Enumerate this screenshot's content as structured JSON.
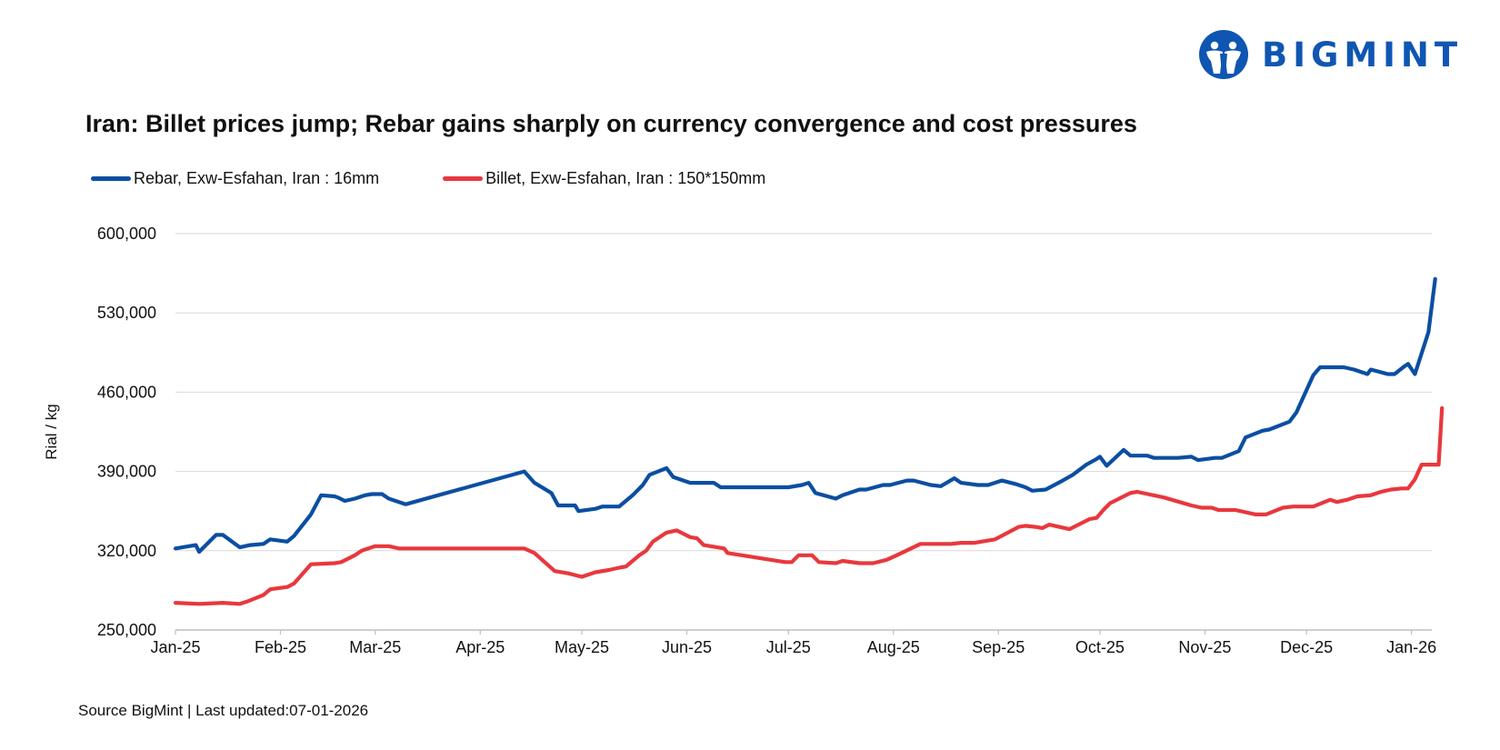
{
  "logo": {
    "name": "BIGMINT",
    "icon": "bigmint-logo-icon",
    "brand_color": "#0F56B3"
  },
  "chart_data": {
    "type": "line",
    "title": "Iran: Billet prices jump; Rebar gains sharply on currency convergence and cost pressures",
    "xlabel": "",
    "ylabel": "Rial / kg",
    "ylim": [
      250000,
      600000
    ],
    "yticks": [
      "600,000",
      "530,000",
      "460,000",
      "390,000",
      "320,000",
      "250,000"
    ],
    "ytick_values": [
      600000,
      530000,
      460000,
      390000,
      320000,
      250000
    ],
    "x_tick_labels": [
      "Jan-25",
      "Feb-25",
      "Mar-25",
      "Apr-25",
      "May-25",
      "Jun-25",
      "Jul-25",
      "Aug-25",
      "Sep-25",
      "Oct-25",
      "Nov-25",
      "Dec-25",
      "Jan-26"
    ],
    "x_tick_days": [
      0,
      31,
      59,
      90,
      120,
      151,
      181,
      212,
      243,
      273,
      304,
      334,
      365
    ],
    "x_range_days": [
      0,
      371
    ],
    "grid": true,
    "legend_position": "top-left",
    "series": [
      {
        "name": "Rebar, Exw-Esfahan, Iran : 16mm",
        "color": "#0B4EA2",
        "points": [
          [
            0,
            322000
          ],
          [
            6,
            325000
          ],
          [
            7,
            319000
          ],
          [
            12,
            334000
          ],
          [
            14,
            334000
          ],
          [
            19,
            323000
          ],
          [
            22,
            325000
          ],
          [
            26,
            326000
          ],
          [
            28,
            330000
          ],
          [
            33,
            328000
          ],
          [
            35,
            333000
          ],
          [
            40,
            352000
          ],
          [
            43,
            369000
          ],
          [
            47,
            368000
          ],
          [
            48,
            367000
          ],
          [
            50,
            364000
          ],
          [
            53,
            366000
          ],
          [
            56,
            369000
          ],
          [
            58,
            370000
          ],
          [
            61,
            370000
          ],
          [
            63,
            366000
          ],
          [
            68,
            361000
          ],
          [
            103,
            390000
          ],
          [
            106,
            380000
          ],
          [
            111,
            371000
          ],
          [
            113,
            360000
          ],
          [
            118,
            360000
          ],
          [
            119,
            355000
          ],
          [
            124,
            357000
          ],
          [
            126,
            359000
          ],
          [
            131,
            359000
          ],
          [
            135,
            369000
          ],
          [
            138,
            378000
          ],
          [
            140,
            387000
          ],
          [
            145,
            393000
          ],
          [
            147,
            385000
          ],
          [
            152,
            380000
          ],
          [
            159,
            380000
          ],
          [
            161,
            376000
          ],
          [
            181,
            376000
          ],
          [
            185,
            378000
          ],
          [
            187,
            380000
          ],
          [
            189,
            371000
          ],
          [
            195,
            366000
          ],
          [
            197,
            369000
          ],
          [
            202,
            374000
          ],
          [
            204,
            374000
          ],
          [
            209,
            378000
          ],
          [
            211,
            378000
          ],
          [
            216,
            382000
          ],
          [
            218,
            382000
          ],
          [
            223,
            378000
          ],
          [
            226,
            377000
          ],
          [
            230,
            384000
          ],
          [
            232,
            380000
          ],
          [
            237,
            378000
          ],
          [
            240,
            378000
          ],
          [
            244,
            382000
          ],
          [
            248,
            379000
          ],
          [
            251,
            376000
          ],
          [
            253,
            373000
          ],
          [
            257,
            374000
          ],
          [
            262,
            382000
          ],
          [
            265,
            387000
          ],
          [
            269,
            396000
          ],
          [
            272,
            401000
          ],
          [
            273,
            403000
          ],
          [
            275,
            395000
          ],
          [
            280,
            409000
          ],
          [
            282,
            404000
          ],
          [
            287,
            404000
          ],
          [
            289,
            402000
          ],
          [
            296,
            402000
          ],
          [
            300,
            403000
          ],
          [
            302,
            400000
          ],
          [
            307,
            402000
          ],
          [
            309,
            402000
          ],
          [
            314,
            408000
          ],
          [
            316,
            420000
          ],
          [
            321,
            426000
          ],
          [
            323,
            427000
          ],
          [
            329,
            434000
          ],
          [
            331,
            442000
          ],
          [
            336,
            475000
          ],
          [
            338,
            482000
          ],
          [
            343,
            482000
          ],
          [
            345,
            482000
          ],
          [
            348,
            480000
          ],
          [
            352,
            476000
          ],
          [
            353,
            480000
          ],
          [
            358,
            476000
          ],
          [
            360,
            476000
          ],
          [
            363,
            483000
          ],
          [
            364,
            485000
          ],
          [
            366,
            476000
          ],
          [
            370,
            513000
          ],
          [
            372,
            560000
          ]
        ]
      },
      {
        "name": "Billet, Exw-Esfahan, Iran : 150*150mm",
        "color": "#E8383D",
        "points": [
          [
            0,
            274000
          ],
          [
            7,
            273000
          ],
          [
            14,
            274000
          ],
          [
            19,
            273000
          ],
          [
            21,
            275000
          ],
          [
            26,
            281000
          ],
          [
            28,
            286000
          ],
          [
            33,
            288000
          ],
          [
            35,
            291000
          ],
          [
            40,
            308000
          ],
          [
            47,
            309000
          ],
          [
            49,
            310000
          ],
          [
            53,
            316000
          ],
          [
            55,
            320000
          ],
          [
            59,
            324000
          ],
          [
            63,
            324000
          ],
          [
            66,
            322000
          ],
          [
            103,
            322000
          ],
          [
            106,
            318000
          ],
          [
            112,
            302000
          ],
          [
            116,
            300000
          ],
          [
            120,
            297000
          ],
          [
            124,
            301000
          ],
          [
            128,
            303000
          ],
          [
            131,
            305000
          ],
          [
            133,
            306000
          ],
          [
            137,
            316000
          ],
          [
            139,
            320000
          ],
          [
            141,
            328000
          ],
          [
            145,
            336000
          ],
          [
            148,
            338000
          ],
          [
            152,
            332000
          ],
          [
            154,
            331000
          ],
          [
            156,
            325000
          ],
          [
            162,
            322000
          ],
          [
            163,
            318000
          ],
          [
            180,
            310000
          ],
          [
            182,
            310000
          ],
          [
            184,
            316000
          ],
          [
            188,
            316000
          ],
          [
            190,
            310000
          ],
          [
            195,
            309000
          ],
          [
            197,
            311000
          ],
          [
            202,
            309000
          ],
          [
            206,
            309000
          ],
          [
            210,
            312000
          ],
          [
            213,
            316000
          ],
          [
            220,
            326000
          ],
          [
            229,
            326000
          ],
          [
            232,
            327000
          ],
          [
            236,
            327000
          ],
          [
            242,
            330000
          ],
          [
            249,
            341000
          ],
          [
            251,
            342000
          ],
          [
            254,
            341000
          ],
          [
            256,
            340000
          ],
          [
            258,
            343000
          ],
          [
            261,
            341000
          ],
          [
            264,
            339000
          ],
          [
            270,
            348000
          ],
          [
            272,
            349000
          ],
          [
            274,
            356000
          ],
          [
            276,
            362000
          ],
          [
            282,
            371000
          ],
          [
            284,
            372000
          ],
          [
            292,
            367000
          ],
          [
            300,
            360000
          ],
          [
            303,
            358000
          ],
          [
            306,
            358000
          ],
          [
            308,
            356000
          ],
          [
            313,
            356000
          ],
          [
            316,
            354000
          ],
          [
            319,
            352000
          ],
          [
            322,
            352000
          ],
          [
            327,
            358000
          ],
          [
            330,
            359000
          ],
          [
            333,
            359000
          ],
          [
            336,
            359000
          ],
          [
            341,
            365000
          ],
          [
            343,
            363000
          ],
          [
            346,
            365000
          ],
          [
            349,
            368000
          ],
          [
            353,
            369000
          ],
          [
            356,
            372000
          ],
          [
            359,
            374000
          ],
          [
            362,
            375000
          ],
          [
            364,
            375000
          ],
          [
            366,
            383000
          ],
          [
            368,
            396000
          ],
          [
            371,
            396000
          ],
          [
            373,
            396000
          ],
          [
            374,
            446000
          ]
        ]
      }
    ]
  },
  "footer": {
    "source": "Source BigMint | Last updated:07-01-2026"
  }
}
